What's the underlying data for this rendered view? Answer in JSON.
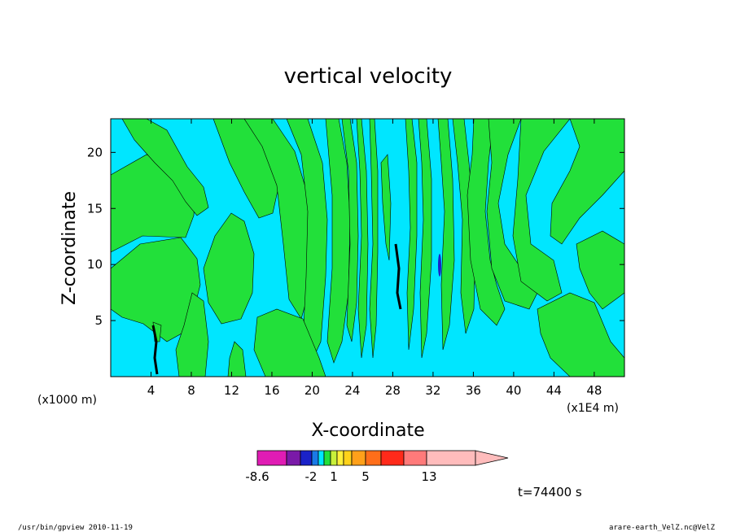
{
  "chart_data": {
    "type": "heatmap",
    "title": "vertical velocity",
    "xlabel": "X-coordinate",
    "ylabel": "Z-coordinate",
    "x_unit_left": "(x1000 m)",
    "x_unit_right": "(x1E4 m)",
    "xlim": [
      0,
      51
    ],
    "ylim": [
      0,
      23
    ],
    "x_ticks": [
      "4",
      "8",
      "12",
      "16",
      "20",
      "24",
      "28",
      "32",
      "36",
      "40",
      "44",
      "48"
    ],
    "y_ticks": [
      "5",
      "10",
      "15",
      "20"
    ],
    "x_tick_values": [
      4,
      8,
      12,
      16,
      20,
      24,
      28,
      32,
      36,
      40,
      44,
      48
    ],
    "y_tick_values": [
      5,
      10,
      15,
      20
    ],
    "colorbar": {
      "labels": [
        "-8.6",
        "-2",
        "1",
        "5",
        "13"
      ],
      "colors": [
        "#e01cb4",
        "#7a1aa8",
        "#1a22c8",
        "#1a7ae6",
        "#00e6ff",
        "#22e03a",
        "#c8f03a",
        "#fff03a",
        "#ffd21a",
        "#ffa01a",
        "#ff6e1a",
        "#ff2a1a",
        "#ff7a7a",
        "#ffbcbc"
      ]
    },
    "time_label": "t=74400 s",
    "dominant_colors": {
      "negative": "#00e6ff",
      "positive": "#22e03a"
    }
  },
  "footer": {
    "left": "/usr/bin/gpview   2010-11-19",
    "right": "arare-earth_VelZ.nc@VelZ"
  }
}
